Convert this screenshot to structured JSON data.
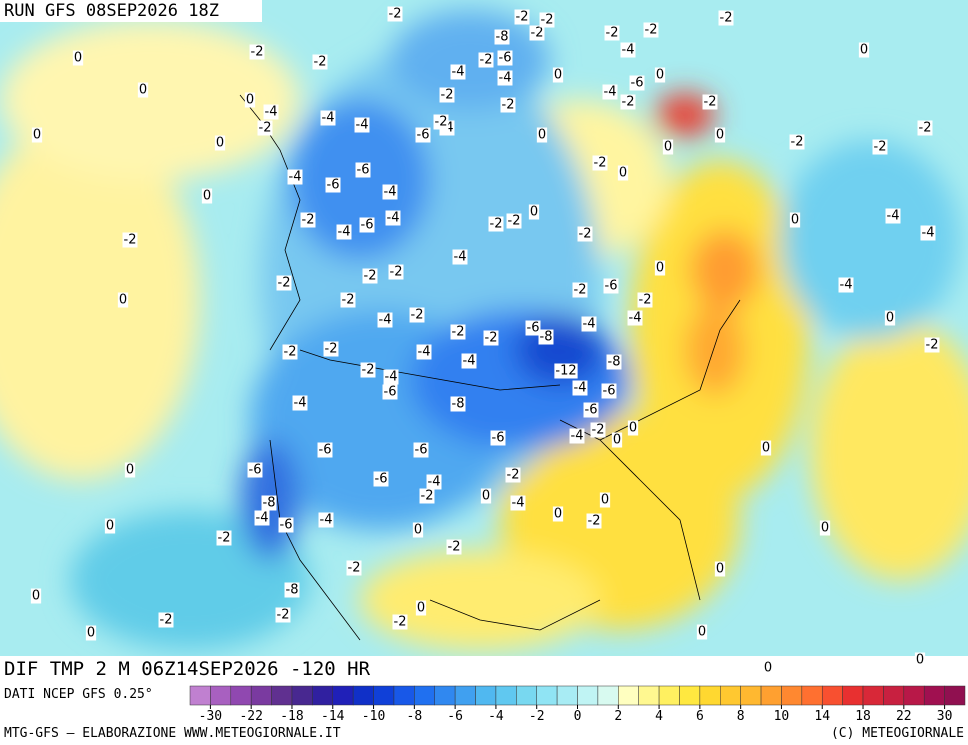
{
  "header": {
    "run": "RUN GFS 08SEP2026 18Z"
  },
  "contour_labels": [
    0,
    0,
    0,
    -2,
    -2,
    0,
    -4,
    -2,
    0,
    -4,
    -4,
    -6,
    -4,
    -2,
    -2,
    -8,
    -2,
    -2,
    -2,
    -2,
    -6,
    -4,
    -4,
    0,
    -2,
    -2,
    -4,
    -4,
    -6,
    -2,
    0,
    -2,
    -2,
    0,
    0,
    0,
    -2,
    0,
    0,
    -2,
    -2,
    -6,
    -4,
    -6,
    -4,
    0,
    -2,
    -4,
    -6,
    -4,
    -2,
    -2,
    0,
    -2,
    -2,
    -2,
    -2,
    -4,
    -2,
    0,
    -2,
    -6,
    -2,
    0,
    -2,
    -4,
    -2,
    -2,
    -2,
    -6,
    -8,
    -4,
    -4,
    -8,
    -12,
    -4,
    -6,
    -4,
    -4,
    -2,
    -2,
    -2,
    -4,
    -6,
    -4,
    -8,
    -6,
    -4,
    -2,
    0,
    0,
    -6,
    -6,
    -6,
    0,
    0,
    -6,
    -6,
    -4,
    -2,
    -2,
    0,
    -4,
    -8,
    -4,
    -6,
    -4,
    0,
    -2,
    0,
    0,
    0,
    0,
    -2,
    -2,
    -2,
    0,
    0,
    -8,
    -2,
    -2,
    -2,
    0,
    0,
    0,
    0,
    0,
    -2,
    -2,
    -2,
    0,
    -4,
    -4,
    -4,
    0,
    -2
  ],
  "footer": {
    "title": "DIF TMP 2 M 06Z14SEP2026 -120 HR",
    "source": "DATI NCEP GFS 0.25°",
    "credit": "MTG-GFS — ELABORAZIONE WWW.METEOGIORNALE.IT",
    "copyright": "(C) METEOGIORNALE"
  },
  "legend": {
    "colors": [
      "#c080d0",
      "#a860c0",
      "#9048b0",
      "#7a3aa0",
      "#603090",
      "#482890",
      "#3020a0",
      "#2020b8",
      "#1030c8",
      "#1040d8",
      "#1858e8",
      "#2070f0",
      "#3088f0",
      "#40a0f0",
      "#50b8f0",
      "#60c8f0",
      "#78d8f0",
      "#90e4f4",
      "#a8ecf4",
      "#c0f4f4",
      "#d8faf0",
      "#ffffc0",
      "#fff890",
      "#fff060",
      "#ffe840",
      "#ffd830",
      "#ffc830",
      "#ffb830",
      "#ffa030",
      "#ff8830",
      "#ff7030",
      "#f85030",
      "#e83030",
      "#d82838",
      "#c82040",
      "#b81848",
      "#a01050",
      "#901050"
    ],
    "ticks": [
      -30,
      -22,
      -18,
      -14,
      -10,
      -8,
      -6,
      -4,
      -2,
      0,
      2,
      4,
      6,
      8,
      10,
      14,
      18,
      22,
      30
    ]
  }
}
